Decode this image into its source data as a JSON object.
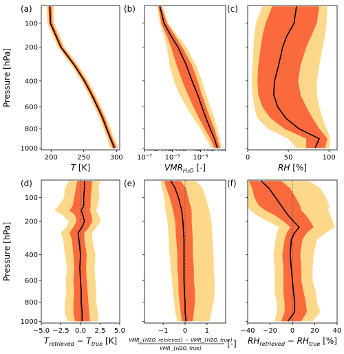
{
  "figure": {
    "ylabel": "Pressure [hPa]",
    "pressure_ticks": [
      "100",
      "200",
      "400",
      "600",
      "800",
      "1000"
    ]
  },
  "colors": {
    "outer_band": "#fdd88a",
    "inner_band": "#fb6a3c",
    "median": "#000000",
    "zero_line": "#555555"
  },
  "chart_data": [
    {
      "panel": "(a)",
      "type": "area",
      "xlabel_main": "T",
      "xlabel_unit": " [K]",
      "x_ticks": [
        "200",
        "250",
        "300"
      ],
      "xlim": [
        185,
        305
      ],
      "xlog": false,
      "pressure": [
        50,
        100,
        200,
        300,
        400,
        500,
        600,
        700,
        800,
        900,
        1000
      ],
      "median": [
        198,
        199,
        215,
        236,
        251,
        262,
        271,
        279,
        285,
        291,
        297
      ],
      "inner": [
        [
          196,
          201
        ],
        [
          197,
          202
        ],
        [
          213,
          218
        ],
        [
          234,
          239
        ],
        [
          249,
          254
        ],
        [
          260,
          265
        ],
        [
          269,
          274
        ],
        [
          277,
          282
        ],
        [
          283,
          288
        ],
        [
          289,
          294
        ],
        [
          294,
          300
        ]
      ],
      "outer": [
        [
          193,
          204
        ],
        [
          194,
          205
        ],
        [
          210,
          221
        ],
        [
          231,
          242
        ],
        [
          246,
          257
        ],
        [
          257,
          268
        ],
        [
          266,
          277
        ],
        [
          274,
          285
        ],
        [
          280,
          291
        ],
        [
          286,
          297
        ],
        [
          290,
          303
        ]
      ]
    },
    {
      "panel": "(b)",
      "type": "area",
      "xlabel_main": "VMR",
      "xlabel_sub": "H₂O",
      "xlabel_unit": " [-]",
      "x_ticks": [
        "10⁻⁷",
        "10⁻⁵",
        "10⁻³"
      ],
      "xlim": [
        -7,
        -1.2
      ],
      "xlog": true,
      "pressure": [
        50,
        100,
        150,
        200,
        300,
        400,
        500,
        600,
        700,
        800,
        900,
        1000
      ],
      "median": [
        -5.9,
        -5.6,
        -5.1,
        -4.6,
        -4.0,
        -3.6,
        -3.2,
        -2.9,
        -2.6,
        -2.3,
        -2.0,
        -1.8
      ],
      "inner": [
        [
          -6.0,
          -5.8
        ],
        [
          -5.8,
          -5.4
        ],
        [
          -5.4,
          -4.8
        ],
        [
          -5.1,
          -4.3
        ],
        [
          -4.7,
          -3.6
        ],
        [
          -4.3,
          -3.2
        ],
        [
          -3.9,
          -2.9
        ],
        [
          -3.5,
          -2.6
        ],
        [
          -3.1,
          -2.3
        ],
        [
          -2.7,
          -2.0
        ],
        [
          -2.3,
          -1.8
        ],
        [
          -2.0,
          -1.6
        ]
      ],
      "outer": [
        [
          -6.1,
          -5.7
        ],
        [
          -5.9,
          -5.3
        ],
        [
          -5.6,
          -4.6
        ],
        [
          -5.4,
          -4.0
        ],
        [
          -5.2,
          -3.3
        ],
        [
          -4.9,
          -2.9
        ],
        [
          -4.5,
          -2.6
        ],
        [
          -4.0,
          -2.3
        ],
        [
          -3.5,
          -2.0
        ],
        [
          -3.0,
          -1.8
        ],
        [
          -2.6,
          -1.6
        ],
        [
          -2.2,
          -1.5
        ]
      ]
    },
    {
      "panel": "(c)",
      "type": "area",
      "xlabel_main": "RH",
      "xlabel_unit": " [%]",
      "x_ticks": [
        "0",
        "50",
        "100"
      ],
      "xlim": [
        0,
        110
      ],
      "xlog": false,
      "pressure": [
        50,
        100,
        150,
        200,
        300,
        400,
        500,
        600,
        700,
        800,
        900,
        1000
      ],
      "median": [
        60,
        57,
        48,
        43,
        38,
        33,
        32,
        37,
        47,
        63,
        88,
        83
      ],
      "inner": [
        [
          30,
          88
        ],
        [
          22,
          85
        ],
        [
          18,
          78
        ],
        [
          16,
          72
        ],
        [
          13,
          65
        ],
        [
          12,
          62
        ],
        [
          13,
          65
        ],
        [
          18,
          72
        ],
        [
          28,
          80
        ],
        [
          45,
          88
        ],
        [
          72,
          98
        ],
        [
          72,
          95
        ]
      ],
      "outer": [
        [
          18,
          98
        ],
        [
          10,
          97
        ],
        [
          8,
          95
        ],
        [
          7,
          92
        ],
        [
          6,
          88
        ],
        [
          5,
          85
        ],
        [
          6,
          85
        ],
        [
          8,
          88
        ],
        [
          12,
          92
        ],
        [
          25,
          97
        ],
        [
          50,
          102
        ],
        [
          60,
          100
        ]
      ]
    },
    {
      "panel": "(d)",
      "type": "area",
      "xlabel_main": "T",
      "xlabel_sub1": "retrieved",
      "xlabel_mid": " − T",
      "xlabel_sub2": "true",
      "xlabel_unit": " [K]",
      "x_ticks": [
        "−5.0",
        "−2.5",
        "0.0",
        "2.5",
        "5.0"
      ],
      "xlim": [
        -5,
        5
      ],
      "xlog": false,
      "pressure": [
        50,
        70,
        100,
        130,
        150,
        170,
        200,
        230,
        260,
        300,
        400,
        500,
        600,
        700,
        800,
        900,
        1000
      ],
      "median": [
        0.5,
        0.5,
        0.4,
        0.4,
        0.1,
        0.3,
        0.5,
        0.2,
        -0.3,
        -0.2,
        0.0,
        -0.1,
        0.0,
        0.1,
        0.1,
        0.2,
        0.2
      ],
      "inner": [
        [
          -0.4,
          1.5
        ],
        [
          -0.6,
          1.4
        ],
        [
          -0.8,
          1.3
        ],
        [
          -1.0,
          1.3
        ],
        [
          -1.4,
          1.2
        ],
        [
          -0.7,
          1.4
        ],
        [
          -0.5,
          1.5
        ],
        [
          -0.9,
          1.1
        ],
        [
          -1.4,
          0.5
        ],
        [
          -1.1,
          0.5
        ],
        [
          -0.9,
          0.8
        ],
        [
          -0.8,
          0.7
        ],
        [
          -0.9,
          0.8
        ],
        [
          -0.8,
          0.9
        ],
        [
          -0.9,
          1.0
        ],
        [
          -0.9,
          1.1
        ],
        [
          -0.7,
          1.2
        ]
      ],
      "outer": [
        [
          -1.5,
          2.5
        ],
        [
          -2.0,
          2.3
        ],
        [
          -2.1,
          2.4
        ],
        [
          -2.8,
          2.2
        ],
        [
          -3.3,
          2.0
        ],
        [
          -2.3,
          2.3
        ],
        [
          -1.5,
          2.6
        ],
        [
          -1.8,
          2.0
        ],
        [
          -2.5,
          1.5
        ],
        [
          -2.2,
          1.5
        ],
        [
          -2.0,
          1.9
        ],
        [
          -1.7,
          1.8
        ],
        [
          -1.9,
          1.9
        ],
        [
          -1.8,
          2.0
        ],
        [
          -2.0,
          2.0
        ],
        [
          -2.0,
          2.2
        ],
        [
          -1.7,
          2.3
        ]
      ]
    },
    {
      "panel": "(e)",
      "type": "area",
      "xlabel_num": "VMR_{H2O, retrieved} − VMR_{H2O, true}",
      "xlabel_den": "VMR_{H2O, true}",
      "xlabel_unit": "[-]",
      "x_ticks": [
        "−1",
        "0",
        "1"
      ],
      "xlim": [
        -1.85,
        1.85
      ],
      "xlog": false,
      "pressure": [
        50,
        70,
        100,
        150,
        200,
        300,
        400,
        500,
        600,
        700,
        800,
        900,
        1000
      ],
      "median": [
        -0.65,
        -0.45,
        -0.3,
        -0.15,
        -0.1,
        -0.05,
        -0.05,
        -0.05,
        -0.05,
        -0.03,
        0.0,
        0.0,
        0.05
      ],
      "inner": [
        [
          -0.95,
          -0.2
        ],
        [
          -0.85,
          0.05
        ],
        [
          -0.7,
          0.15
        ],
        [
          -0.55,
          0.3
        ],
        [
          -0.45,
          0.3
        ],
        [
          -0.4,
          0.35
        ],
        [
          -0.35,
          0.35
        ],
        [
          -0.35,
          0.4
        ],
        [
          -0.3,
          0.4
        ],
        [
          -0.3,
          0.45
        ],
        [
          -0.25,
          0.45
        ],
        [
          -0.2,
          0.4
        ],
        [
          -0.15,
          0.35
        ]
      ],
      "outer": [
        [
          -1.1,
          0.5
        ],
        [
          -1.05,
          0.8
        ],
        [
          -0.95,
          0.95
        ],
        [
          -0.9,
          1.1
        ],
        [
          -0.8,
          1.2
        ],
        [
          -0.75,
          1.25
        ],
        [
          -0.7,
          1.3
        ],
        [
          -0.65,
          1.3
        ],
        [
          -0.6,
          1.35
        ],
        [
          -0.55,
          1.35
        ],
        [
          -0.5,
          1.3
        ],
        [
          -0.45,
          1.2
        ],
        [
          -0.35,
          1.1
        ]
      ]
    },
    {
      "panel": "(f)",
      "type": "area",
      "xlabel_main": "RH",
      "xlabel_sub1": "retrieved",
      "xlabel_mid": " − RH",
      "xlabel_sub2": "true",
      "xlabel_unit": " [%]",
      "x_ticks": [
        "−40",
        "−20",
        "0",
        "20",
        "40"
      ],
      "xlim": [
        -40,
        40
      ],
      "xlog": false,
      "pressure": [
        50,
        70,
        100,
        130,
        150,
        170,
        200,
        230,
        260,
        300,
        400,
        500,
        600,
        700,
        800,
        900,
        1000
      ],
      "median": [
        -28,
        -21,
        -15,
        -10,
        -7,
        -4,
        1,
        6,
        2,
        -1,
        -2,
        -1,
        0,
        1,
        2,
        2,
        -4
      ],
      "inner": [
        [
          -39,
          -10
        ],
        [
          -36,
          -2
        ],
        [
          -34,
          3
        ],
        [
          -30,
          7
        ],
        [
          -24,
          8
        ],
        [
          -16,
          12
        ],
        [
          -8,
          16
        ],
        [
          -2,
          19
        ],
        [
          -5,
          13
        ],
        [
          -7,
          9
        ],
        [
          -9,
          7
        ],
        [
          -8,
          8
        ],
        [
          -8,
          8
        ],
        [
          -8,
          10
        ],
        [
          -7,
          12
        ],
        [
          -7,
          13
        ],
        [
          -10,
          8
        ]
      ],
      "outer": [
        [
          -40,
          15
        ],
        [
          -40,
          25
        ],
        [
          -40,
          30
        ],
        [
          -40,
          33
        ],
        [
          -38,
          32
        ],
        [
          -32,
          34
        ],
        [
          -22,
          36
        ],
        [
          -12,
          38
        ],
        [
          -14,
          30
        ],
        [
          -15,
          22
        ],
        [
          -17,
          19
        ],
        [
          -16,
          18
        ],
        [
          -16,
          18
        ],
        [
          -16,
          21
        ],
        [
          -14,
          22
        ],
        [
          -14,
          25
        ],
        [
          -16,
          18
        ]
      ]
    }
  ]
}
